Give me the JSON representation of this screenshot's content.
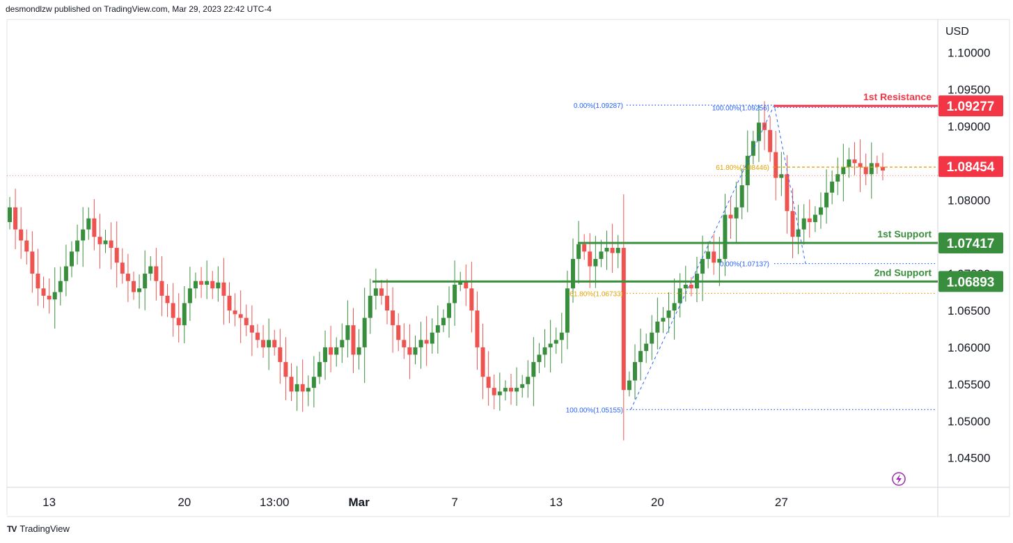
{
  "header": {
    "published": "desmondlzw published on TradingView.com, Mar 29, 2023 22:42 UTC-4"
  },
  "footer": {
    "logo": "TV",
    "brand": "TradingView"
  },
  "chart_data": {
    "type": "candlestick",
    "currency_label": "USD",
    "ylim": [
      1.041,
      1.1045
    ],
    "y_ticks": [
      "1.10000",
      "1.09500",
      "1.09000",
      "1.08000",
      "1.07500",
      "1.07000",
      "1.06500",
      "1.06000",
      "1.05500",
      "1.05000",
      "1.04500"
    ],
    "x_ticks": [
      "13",
      "20",
      "13:00",
      "Mar",
      "7",
      "13",
      "20",
      "27"
    ],
    "last_price": 1.08454,
    "levels": [
      {
        "name": "1st Resistance",
        "price": 1.09277,
        "value": "1.09277",
        "color": "#f23645"
      },
      {
        "name": "1st Support",
        "price": 1.07417,
        "value": "1.07417",
        "color": "#388e3c"
      },
      {
        "name": "2nd Support",
        "price": 1.06893,
        "value": "1.06893",
        "color": "#388e3c"
      }
    ],
    "last_price_label": "1.08454",
    "fib_labels": [
      {
        "text": "0.00%(1.09287)",
        "price": 1.09287,
        "color": "#2962ff"
      },
      {
        "text": "100.00%(1.09256)",
        "price": 1.09256,
        "color": "#2962ff"
      },
      {
        "text": "61.80%(1.08446)",
        "price": 1.08446,
        "color": "#e3a200"
      },
      {
        "text": "0.00%(1.07137)",
        "price": 1.07137,
        "color": "#2962ff"
      },
      {
        "text": "61.80%(1.06733)",
        "price": 1.06733,
        "color": "#e3a200"
      },
      {
        "text": "100.00%(1.05155)",
        "price": 1.05155,
        "color": "#2962ff"
      }
    ],
    "closes": [
      1.079,
      1.076,
      1.0745,
      1.073,
      1.07,
      1.068,
      1.067,
      1.0665,
      1.0675,
      1.069,
      1.071,
      1.073,
      1.0745,
      1.076,
      1.0775,
      1.075,
      1.074,
      1.0745,
      1.0735,
      1.0715,
      1.07,
      1.069,
      1.0675,
      1.068,
      1.07,
      1.071,
      1.069,
      1.067,
      1.066,
      1.064,
      1.063,
      1.066,
      1.068,
      1.069,
      1.0685,
      1.069,
      1.068,
      1.0688,
      1.067,
      1.065,
      1.0645,
      1.064,
      1.063,
      1.062,
      1.061,
      1.06,
      1.061,
      1.06,
      1.058,
      1.056,
      1.054,
      1.055,
      1.054,
      1.0545,
      1.056,
      1.058,
      1.06,
      1.059,
      1.06,
      1.061,
      1.063,
      1.059,
      1.06,
      1.064,
      1.067,
      1.068,
      1.067,
      1.065,
      1.063,
      1.061,
      1.06,
      1.059,
      1.06,
      1.061,
      1.0605,
      1.062,
      1.063,
      1.064,
      1.066,
      1.0685,
      1.069,
      1.068,
      1.065,
      1.06,
      1.056,
      1.0545,
      1.0535,
      1.054,
      1.0545,
      1.054,
      1.0545,
      1.055,
      1.056,
      1.058,
      1.059,
      1.06,
      1.0605,
      1.061,
      1.062,
      1.068,
      1.072,
      1.074,
      1.073,
      1.071,
      1.072,
      1.073,
      1.0735,
      1.0728,
      1.0735,
      1.0542,
      1.0555,
      1.058,
      1.0595,
      1.0605,
      1.062,
      1.0635,
      1.064,
      1.065,
      1.066,
      1.068,
      1.0685,
      1.068,
      1.07,
      1.072,
      1.073,
      1.0715,
      1.072,
      1.078,
      1.0775,
      1.079,
      1.082,
      1.086,
      1.088,
      1.0905,
      1.0895,
      1.0865,
      1.083,
      1.0835,
      1.0785,
      1.075,
      1.076,
      1.0775,
      1.077,
      1.078,
      1.079,
      1.081,
      1.0825,
      1.0835,
      1.0845,
      1.0855,
      1.085,
      1.0845,
      1.0835,
      1.085,
      1.0845,
      1.084
    ],
    "open_first": 1.077,
    "ticks_at": [
      7,
      31,
      47,
      62,
      79,
      97,
      115,
      137
    ]
  }
}
